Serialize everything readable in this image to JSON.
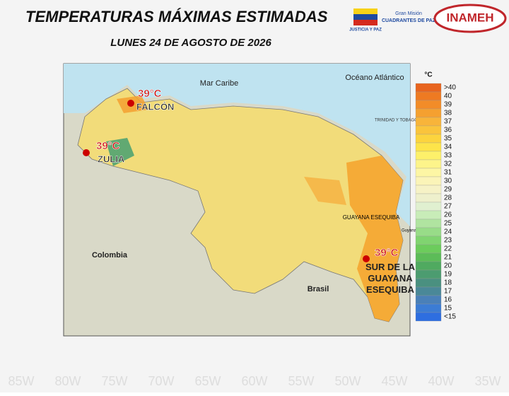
{
  "header": {
    "title": "TEMPERATURAS MÁXIMAS ESTIMADAS",
    "date": "LUNES 24 DE AGOSTO DE 2026",
    "logos": {
      "flag_caption": "JUSTICIA Y PAZ",
      "mision_small": "Gran Misión",
      "mision": "CUADRANTES DE PAZ",
      "inameh": "INAMEH"
    }
  },
  "map": {
    "places": {
      "sea": "Mar Caribe",
      "ocean": "Océano Atlántico",
      "colombia": "Colombia",
      "brasil": "Brasil",
      "esequiba": "GUAYANA ESEQUIBA",
      "guyana": "Guyana",
      "trinidad": "TRINIDAD Y TOBAGO"
    },
    "callouts": [
      {
        "temp": "39°C",
        "place": "FALCÓN"
      },
      {
        "temp": "39°C",
        "place": "ZULIA"
      },
      {
        "temp": "39°C",
        "place": "SUR DE LA GUAYANA ESEQUIBA"
      }
    ],
    "longitudes": [
      "85W",
      "80W",
      "75W",
      "70W",
      "65W",
      "60W",
      "55W",
      "50W",
      "45W",
      "40W",
      "35W"
    ]
  },
  "legend": {
    "unit": "°C",
    "items": [
      {
        "label": ">40",
        "color": "#e8641e"
      },
      {
        "label": 40,
        "color": "#ee7a22"
      },
      {
        "label": 39,
        "color": "#f28c28"
      },
      {
        "label": 38,
        "color": "#f5a030"
      },
      {
        "label": 37,
        "color": "#f8b43a"
      },
      {
        "label": 36,
        "color": "#fac43c"
      },
      {
        "label": 35,
        "color": "#fcd43e"
      },
      {
        "label": 34,
        "color": "#fde44a"
      },
      {
        "label": 33,
        "color": "#fdf06a"
      },
      {
        "label": 32,
        "color": "#fdf48a"
      },
      {
        "label": 31,
        "color": "#fdf6a4"
      },
      {
        "label": 30,
        "color": "#fbf4b8"
      },
      {
        "label": 29,
        "color": "#f6f2c6"
      },
      {
        "label": 28,
        "color": "#eef0cc"
      },
      {
        "label": 27,
        "color": "#e0f0d0"
      },
      {
        "label": 26,
        "color": "#c8ecb8"
      },
      {
        "label": 25,
        "color": "#b0e4a0"
      },
      {
        "label": 24,
        "color": "#98dc88"
      },
      {
        "label": 23,
        "color": "#80d470"
      },
      {
        "label": 22,
        "color": "#6ccc5c"
      },
      {
        "label": 21,
        "color": "#5cbc58"
      },
      {
        "label": 20,
        "color": "#50aa60"
      },
      {
        "label": 19,
        "color": "#4c9c70"
      },
      {
        "label": 18,
        "color": "#4a9080"
      },
      {
        "label": 17,
        "color": "#4a8898"
      },
      {
        "label": 16,
        "color": "#4a80b8"
      },
      {
        "label": 15,
        "color": "#3c7cd4"
      },
      {
        "label": "<15",
        "color": "#2e6ee0"
      }
    ]
  }
}
